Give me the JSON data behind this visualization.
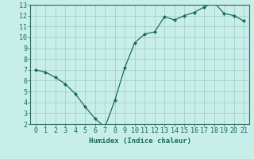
{
  "xlabel": "Humidex (Indice chaleur)",
  "x": [
    0,
    1,
    2,
    3,
    4,
    5,
    6,
    7,
    8,
    9,
    10,
    11,
    12,
    13,
    14,
    15,
    16,
    17,
    18,
    19,
    20,
    21
  ],
  "y": [
    7.0,
    6.8,
    6.3,
    5.7,
    4.8,
    3.6,
    2.5,
    1.7,
    4.2,
    7.2,
    9.5,
    10.3,
    10.5,
    11.9,
    11.6,
    12.0,
    12.3,
    12.8,
    13.2,
    12.2,
    12.0,
    11.5
  ],
  "line_color": "#1a6b5a",
  "marker": "D",
  "markersize": 2.0,
  "linewidth": 0.9,
  "background_color": "#c8eeea",
  "grid_color": "#a0c8c0",
  "axis_color": "#1a6b5a",
  "spine_color": "#2d6b5a",
  "ylim": [
    2,
    13
  ],
  "xlim": [
    -0.5,
    21.5
  ],
  "yticks": [
    2,
    3,
    4,
    5,
    6,
    7,
    8,
    9,
    10,
    11,
    12,
    13
  ],
  "xticks": [
    0,
    1,
    2,
    3,
    4,
    5,
    6,
    7,
    8,
    9,
    10,
    11,
    12,
    13,
    14,
    15,
    16,
    17,
    18,
    19,
    20,
    21
  ],
  "label_fontsize": 6.5,
  "tick_fontsize": 6.0
}
